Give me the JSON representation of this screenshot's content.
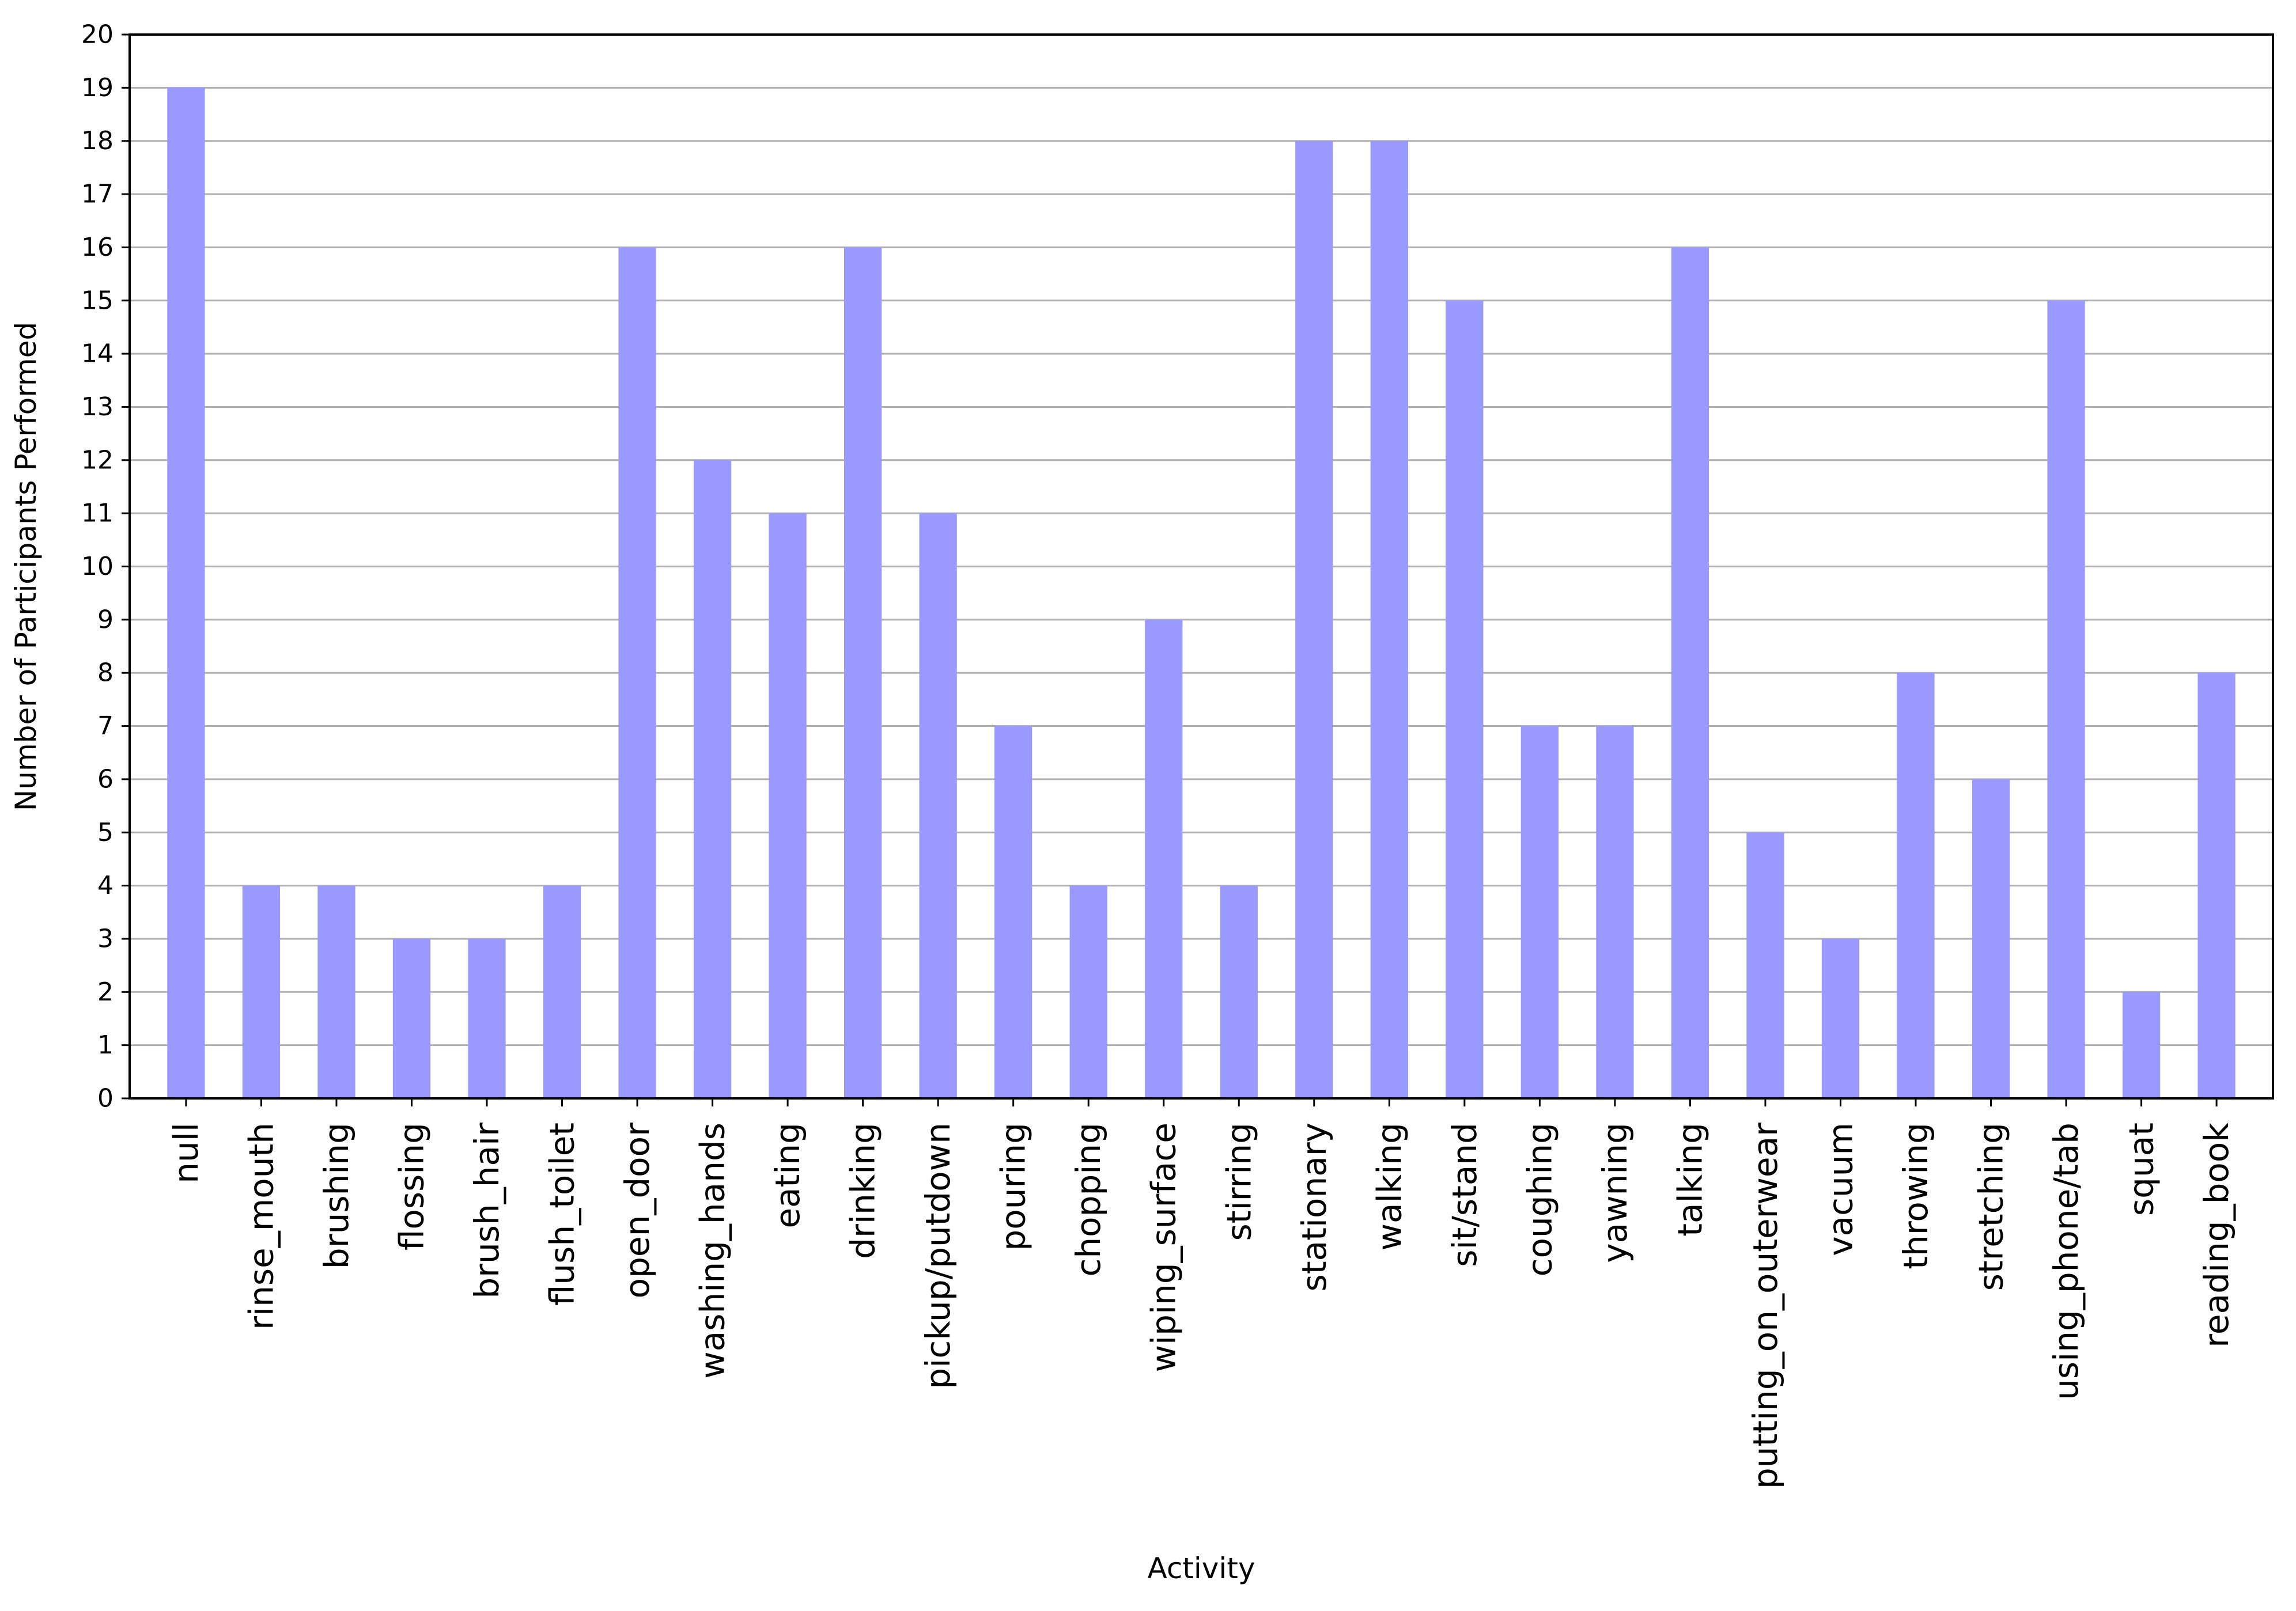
{
  "chart_data": {
    "type": "bar",
    "title": "",
    "xlabel": "Activity",
    "ylabel": "Number of Participants Performed",
    "ylim": [
      0,
      20
    ],
    "yticks": [
      "0",
      "1",
      "2",
      "3",
      "4",
      "5",
      "6",
      "7",
      "8",
      "9",
      "10",
      "11",
      "12",
      "13",
      "14",
      "15",
      "16",
      "17",
      "18",
      "19",
      "20"
    ],
    "grid": "horizontal",
    "bar_color": "#9999ff",
    "grid_color": "#b0b0b0",
    "categories": [
      "null",
      "rinse_mouth",
      "brushing",
      "flossing",
      "brush_hair",
      "flush_toilet",
      "open_door",
      "washing_hands",
      "eating",
      "drinking",
      "pickup/putdown",
      "pouring",
      "chopping",
      "wiping_surface",
      "stirring",
      "stationary",
      "walking",
      "sit/stand",
      "coughing",
      "yawning",
      "talking",
      "putting_on_outerwear",
      "vacuum",
      "throwing",
      "stretching",
      "using_phone/tab",
      "squat",
      "reading_book"
    ],
    "values": [
      19,
      4,
      4,
      3,
      3,
      4,
      16,
      12,
      11,
      16,
      11,
      7,
      4,
      9,
      4,
      18,
      18,
      15,
      7,
      7,
      16,
      5,
      3,
      8,
      6,
      15,
      2,
      8
    ]
  }
}
